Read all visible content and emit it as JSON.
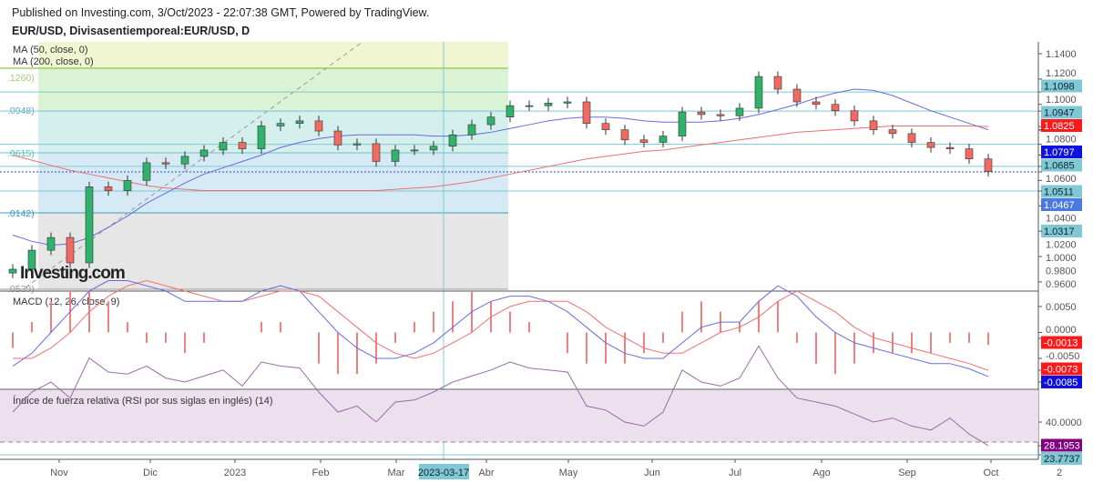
{
  "header": {
    "published": "Published on Investing.com, 3/Oct/2023 - 22:07:38 GMT, Powered by TradingView.",
    "symbol": "EUR/USD, Divisasentiemporeal:EUR/USD, D"
  },
  "legend": {
    "ma50": "MA (50, close, 0)",
    "ma200": "MA (200, close, 0)",
    "macd": "MACD (12, 26, close, 9)",
    "rsi": "Índice de fuerza relativa (RSI por sus siglas en inglés) (14)"
  },
  "watermark": "Investing.com",
  "fib_labels": [
    ".1260)",
    ".0948)",
    ".0615)",
    ".0142)",
    ".0539)"
  ],
  "price_axis": {
    "ticks": [
      "1.1400",
      "1.1200",
      "1.1000",
      "1.0800",
      "1.0600",
      "1.0400",
      "1.0200",
      "1.0000",
      "0.9800",
      "0.9600"
    ],
    "tags": [
      {
        "text": "1.1098",
        "bg": "#7fc8d4",
        "fg": "#123"
      },
      {
        "text": "1.0947",
        "bg": "#7fc8d4",
        "fg": "#123"
      },
      {
        "text": "1.0825",
        "bg": "#ff1a1a",
        "fg": "#fff"
      },
      {
        "text": "1.0797",
        "bg": "#1010e0",
        "fg": "#fff"
      },
      {
        "text": "1.0685",
        "bg": "#7fc8d4",
        "fg": "#123"
      },
      {
        "text": "1.0511",
        "bg": "#7fc8d4",
        "fg": "#123"
      },
      {
        "text": "1.0467",
        "bg": "#4a7ae0",
        "fg": "#fff"
      },
      {
        "text": "1.0317",
        "bg": "#7fc8d4",
        "fg": "#123"
      }
    ]
  },
  "macd_axis": {
    "ticks": [
      "0.0050",
      "0.0000",
      "-0.0050"
    ],
    "tags": [
      {
        "text": "-0.0013",
        "bg": "#ff1a1a",
        "fg": "#fff"
      },
      {
        "text": "-0.0073",
        "bg": "#ff1a1a",
        "fg": "#fff"
      },
      {
        "text": "-0.0085",
        "bg": "#1010e0",
        "fg": "#fff"
      }
    ]
  },
  "rsi_axis": {
    "ticks": [
      "40.0000"
    ],
    "tags": [
      {
        "text": "28.1953",
        "bg": "#800080",
        "fg": "#fff"
      },
      {
        "text": "23.7737",
        "bg": "#7fc8d4",
        "fg": "#123"
      }
    ]
  },
  "time_axis": {
    "labels": [
      "Nov",
      "Dic",
      "2023",
      "Feb",
      "Mar",
      "Abr",
      "May",
      "Jun",
      "Jul",
      "Ago",
      "Sep",
      "Oct",
      "2"
    ],
    "crosshair": "2023-03-17"
  },
  "chart_data": {
    "type": "candlestick",
    "ylim": [
      0.955,
      1.15
    ],
    "close": [
      0.97,
      0.985,
      0.995,
      0.975,
      1.035,
      1.032,
      1.04,
      1.054,
      1.053,
      1.059,
      1.064,
      1.07,
      1.065,
      1.083,
      1.085,
      1.087,
      1.079,
      1.068,
      1.069,
      1.055,
      1.064,
      1.064,
      1.067,
      1.076,
      1.084,
      1.09,
      1.099,
      1.099,
      1.101,
      1.102,
      1.085,
      1.08,
      1.072,
      1.07,
      1.075,
      1.094,
      1.092,
      1.091,
      1.097,
      1.122,
      1.112,
      1.102,
      1.1,
      1.095,
      1.087,
      1.08,
      1.077,
      1.07,
      1.066,
      1.065,
      1.057,
      1.047
    ],
    "ma50": [
      0.997,
      0.992,
      0.989,
      0.99,
      0.995,
      1.003,
      1.012,
      1.022,
      1.03,
      1.038,
      1.045,
      1.05,
      1.055,
      1.06,
      1.066,
      1.07,
      1.073,
      1.075,
      1.076,
      1.076,
      1.076,
      1.076,
      1.075,
      1.075,
      1.076,
      1.078,
      1.081,
      1.084,
      1.087,
      1.089,
      1.09,
      1.09,
      1.089,
      1.087,
      1.086,
      1.086,
      1.086,
      1.087,
      1.089,
      1.092,
      1.096,
      1.1,
      1.105,
      1.109,
      1.112,
      1.111,
      1.107,
      1.101,
      1.095,
      1.09,
      1.085,
      1.08
    ],
    "ma200": [
      1.06,
      1.056,
      1.052,
      1.048,
      1.045,
      1.042,
      1.039,
      1.036,
      1.034,
      1.033,
      1.032,
      1.032,
      1.032,
      1.032,
      1.032,
      1.032,
      1.032,
      1.032,
      1.032,
      1.032,
      1.033,
      1.034,
      1.035,
      1.037,
      1.039,
      1.042,
      1.045,
      1.048,
      1.051,
      1.054,
      1.057,
      1.059,
      1.061,
      1.063,
      1.064,
      1.066,
      1.068,
      1.07,
      1.072,
      1.074,
      1.076,
      1.078,
      1.079,
      1.08,
      1.081,
      1.082,
      1.083,
      1.083,
      1.083,
      1.083,
      1.083,
      1.0825
    ],
    "macd": [
      -0.0065,
      -0.004,
      0.0,
      0.004,
      0.008,
      0.01,
      0.01,
      0.009,
      0.008,
      0.006,
      0.006,
      0.006,
      0.006,
      0.008,
      0.009,
      0.008,
      0.004,
      0.0,
      -0.003,
      -0.005,
      -0.005,
      -0.004,
      -0.002,
      0.001,
      0.004,
      0.006,
      0.007,
      0.007,
      0.006,
      0.004,
      0.001,
      -0.002,
      -0.004,
      -0.005,
      -0.005,
      -0.002,
      0.001,
      0.002,
      0.002,
      0.006,
      0.009,
      0.007,
      0.003,
      0.0,
      -0.002,
      -0.003,
      -0.004,
      -0.005,
      -0.006,
      -0.006,
      -0.007,
      -0.0085
    ],
    "signal": [
      -0.005,
      -0.005,
      -0.003,
      0.0,
      0.004,
      0.007,
      0.009,
      0.01,
      0.009,
      0.008,
      0.007,
      0.006,
      0.006,
      0.007,
      0.008,
      0.008,
      0.007,
      0.004,
      0.001,
      -0.002,
      -0.004,
      -0.005,
      -0.004,
      -0.002,
      0.0,
      0.003,
      0.005,
      0.006,
      0.006,
      0.006,
      0.004,
      0.001,
      -0.001,
      -0.003,
      -0.004,
      -0.004,
      -0.002,
      0.0,
      0.001,
      0.003,
      0.006,
      0.008,
      0.006,
      0.004,
      0.001,
      -0.001,
      -0.002,
      -0.003,
      -0.004,
      -0.005,
      -0.006,
      -0.0073
    ],
    "rsi": [
      45,
      55,
      60,
      52,
      72,
      65,
      64,
      68,
      62,
      60,
      63,
      66,
      58,
      70,
      68,
      67,
      55,
      45,
      48,
      40,
      50,
      51,
      55,
      60,
      63,
      66,
      70,
      67,
      66,
      65,
      48,
      46,
      40,
      38,
      45,
      66,
      60,
      58,
      62,
      78,
      62,
      52,
      50,
      48,
      44,
      40,
      42,
      38,
      36,
      42,
      34,
      28.2
    ]
  }
}
